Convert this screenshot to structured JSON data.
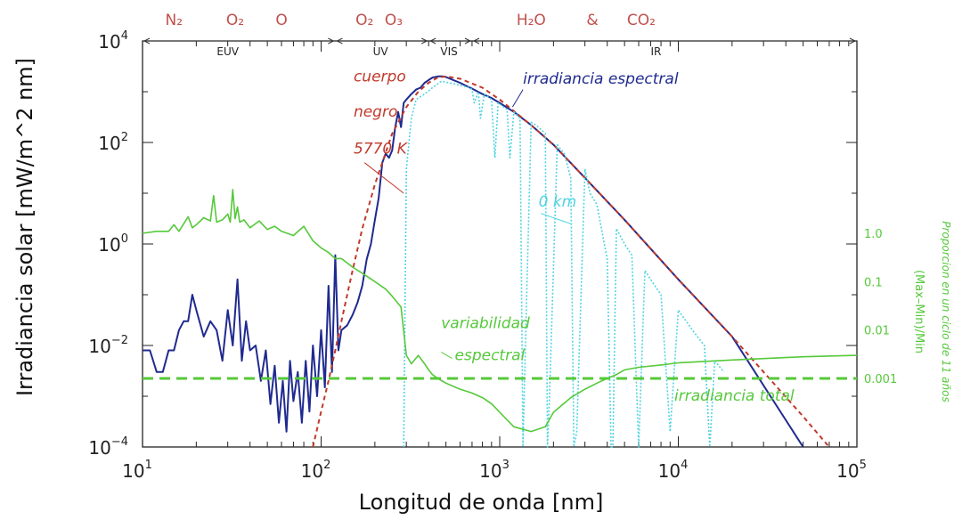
{
  "chart_data": {
    "type": "line",
    "xlabel": "Longitud de onda [nm]",
    "ylabel": "Irradiancia solar [mW/m^2 nm]",
    "y2label": "Proporcion en un ciclo de 11 años",
    "y2label_sub": "(Max–Min)/Min",
    "xscale": "log",
    "yscale": "log",
    "xlim": [
      10,
      100000
    ],
    "ylim": [
      0.0001,
      10000
    ],
    "x_ticks": [
      {
        "base": "10",
        "exp": "1",
        "value": 10
      },
      {
        "base": "10",
        "exp": "2",
        "value": 100
      },
      {
        "base": "10",
        "exp": "3",
        "value": 1000
      },
      {
        "base": "10",
        "exp": "4",
        "value": 10000
      },
      {
        "base": "10",
        "exp": "5",
        "value": 100000
      }
    ],
    "y_ticks": [
      {
        "base": "10",
        "exp": "−4",
        "value": 0.0001
      },
      {
        "base": "10",
        "exp": "−2",
        "value": 0.01
      },
      {
        "base": "10",
        "exp": "0",
        "value": 1
      },
      {
        "base": "10",
        "exp": "2",
        "value": 100
      },
      {
        "base": "10",
        "exp": "4",
        "value": 10000
      }
    ],
    "y2_ticks": [
      {
        "label": "1.0",
        "value": 1.0
      },
      {
        "label": "0.1",
        "value": 0.1
      },
      {
        "label": "0.01",
        "value": 0.01
      },
      {
        "label": "0.001",
        "value": 0.001
      }
    ],
    "top_molecules": [
      {
        "label": "N₂",
        "x": 15
      },
      {
        "label": "O₂",
        "x": 33
      },
      {
        "label": "O",
        "x": 60
      },
      {
        "label": "O₂",
        "x": 175
      },
      {
        "label": "O₃",
        "x": 255
      },
      {
        "label": "H₂O",
        "x": 1500
      },
      {
        "label": "&",
        "x": 3300
      },
      {
        "label": "CO₂",
        "x": 6200
      }
    ],
    "bands": [
      {
        "label": "EUV",
        "from": 10,
        "to": 120,
        "label_x": 30
      },
      {
        "label": "UV",
        "from": 120,
        "to": 400,
        "label_x": 215
      },
      {
        "label": "VIS",
        "from": 400,
        "to": 700,
        "label_x": 520
      },
      {
        "label": "IR",
        "from": 700,
        "to": 100000,
        "label_x": 7500
      }
    ],
    "annotations": [
      {
        "text": "cuerpo",
        "x": 152,
        "y": 1600,
        "color": "#c0392b"
      },
      {
        "text": "negro",
        "x": 152,
        "y": 320,
        "color": "#c0392b"
      },
      {
        "text": "5770 K",
        "x": 152,
        "y": 60,
        "color": "#c0392b"
      },
      {
        "text": "irradiancia espectral",
        "x": 1350,
        "y": 1450,
        "color": "#1f2a8f"
      },
      {
        "text": "0 km",
        "x": 1650,
        "y": 5.5,
        "color": "#4fd3e0"
      },
      {
        "text": "variabilidad",
        "x": 470,
        "y": 0.011,
        "color": "#55c93a"
      },
      {
        "text": "espectral",
        "x": 560,
        "y": 0.0024,
        "color": "#55c93a"
      },
      {
        "text": "irradiancia total",
        "x": 9500,
        "y": 0.00035,
        "color": "#55c93a"
      }
    ],
    "series": [
      {
        "name": "irradiancia espectral",
        "color": "#1f2a8f",
        "x": [
          10,
          11,
          12,
          13,
          14,
          15,
          16,
          17,
          18,
          19,
          20,
          22,
          24,
          26,
          28,
          30,
          32,
          34,
          36,
          38,
          40,
          43,
          46,
          49,
          52,
          55,
          58,
          61,
          64,
          67,
          70,
          74,
          78,
          82,
          86,
          90,
          95,
          100,
          105,
          110,
          115,
          120,
          125,
          130,
          140,
          150,
          160,
          170,
          180,
          190,
          200,
          210,
          220,
          230,
          240,
          250,
          260,
          270,
          280,
          290,
          300,
          320,
          340,
          360,
          380,
          400,
          420,
          450,
          480,
          500,
          550,
          600,
          650,
          700,
          800,
          900,
          1000,
          1200,
          1500,
          2000,
          3000,
          5000,
          10000,
          20000,
          50000
        ],
        "y": [
          0.008,
          0.008,
          0.003,
          0.003,
          0.008,
          0.008,
          0.02,
          0.03,
          0.03,
          0.1,
          0.05,
          0.015,
          0.03,
          0.02,
          0.005,
          0.05,
          0.01,
          0.2,
          0.005,
          0.03,
          0.008,
          0.01,
          0.002,
          0.008,
          0.0007,
          0.004,
          0.0003,
          0.002,
          0.0002,
          0.005,
          0.0008,
          0.003,
          0.0003,
          0.005,
          0.0005,
          0.01,
          0.001,
          0.02,
          0.0015,
          0.15,
          0.003,
          0.6,
          0.008,
          0.02,
          0.025,
          0.04,
          0.07,
          0.15,
          0.5,
          1.0,
          3.0,
          8.0,
          40.0,
          60.0,
          50.0,
          70.0,
          200.0,
          400.0,
          200.0,
          600.0,
          700.0,
          900.0,
          1100.0,
          1200.0,
          1500.0,
          1700.0,
          1900.0,
          2000.0,
          2000.0,
          1950.0,
          1700.0,
          1500.0,
          1300.0,
          1150.0,
          900.0,
          750.0,
          600.0,
          400.0,
          220.0,
          90.0,
          20.0,
          3.0,
          0.2,
          0.015,
          0.0001
        ]
      },
      {
        "name": "cuerpo negro 5770 K",
        "color": "#c0392b",
        "x": [
          90,
          100,
          110,
          120,
          130,
          140,
          150,
          170,
          200,
          250,
          300,
          350,
          400,
          450,
          500,
          600,
          800,
          1000,
          1500,
          2000,
          3000,
          5000,
          10000,
          20000,
          50000,
          70000
        ],
        "y": [
          0.0001,
          0.0005,
          0.002,
          0.008,
          0.03,
          0.1,
          0.3,
          2.0,
          15.0,
          150.0,
          500.0,
          1000.0,
          1500.0,
          1900.0,
          2000.0,
          1800.0,
          1200.0,
          700.0,
          220.0,
          90.0,
          20.0,
          3.0,
          0.2,
          0.015,
          0.0004,
          0.0001
        ]
      },
      {
        "name": "0 km",
        "color": "#4fd3e0",
        "x": [
          290,
          300,
          320,
          340,
          380,
          420,
          470,
          520,
          570,
          620,
          680,
          700,
          720,
          760,
          780,
          820,
          900,
          940,
          980,
          1050,
          1100,
          1140,
          1200,
          1300,
          1350,
          1400,
          1500,
          1600,
          1800,
          1850,
          1900,
          2100,
          2300,
          2500,
          2600,
          2700,
          3000,
          3200,
          3500,
          4000,
          4200,
          4300,
          4500,
          5000,
          5500,
          6000,
          6500,
          7000,
          8000,
          9000,
          10000,
          12000,
          14000,
          15000,
          16000,
          18000
        ],
        "y": [
          0.0001,
          30.0,
          300.0,
          700.0,
          900.0,
          1200.0,
          1600.0,
          1500.0,
          1400.0,
          1300.0,
          1200.0,
          1100.0,
          600.0,
          1000.0,
          300.0,
          900.0,
          700.0,
          50.0,
          600.0,
          500.0,
          450.0,
          50.0,
          400.0,
          300.0,
          0.0001,
          0.02,
          250.0,
          220.0,
          150.0,
          0.0001,
          0.001,
          90.0,
          60.0,
          20.0,
          0.0001,
          0.0002,
          30.0,
          10.0,
          6.0,
          0.5,
          0.0001,
          0.0001,
          2.0,
          1.0,
          0.6,
          0.0001,
          0.3,
          0.2,
          0.1,
          0.0002,
          0.05,
          0.02,
          0.01,
          0.0001,
          0.005,
          0.003
        ]
      },
      {
        "name": "variabilidad espectral",
        "color": "#55c93a",
        "axis": "right",
        "x": [
          10,
          12,
          14,
          15,
          16,
          18,
          19,
          20,
          22,
          24,
          25,
          26,
          28,
          30,
          31,
          32,
          33,
          34,
          35,
          37,
          40,
          45,
          50,
          55,
          60,
          70,
          80,
          90,
          100,
          110,
          120,
          130,
          150,
          170,
          200,
          230,
          250,
          280,
          300,
          320,
          350,
          380,
          400,
          420,
          450,
          500,
          600,
          700,
          800,
          900,
          1000,
          1200,
          1500,
          1800,
          2000,
          2500,
          3000,
          3500,
          4000,
          4500,
          5000,
          6000,
          8000,
          10000,
          20000,
          50000,
          100000
        ],
        "y": [
          1.0,
          1.1,
          1.1,
          1.5,
          1.1,
          2.2,
          1.3,
          1.5,
          2.1,
          1.8,
          6.0,
          1.7,
          1.9,
          2.5,
          1.7,
          8.0,
          2.0,
          3.5,
          1.7,
          1.9,
          1.3,
          1.8,
          1.2,
          1.4,
          1.1,
          0.9,
          1.4,
          0.7,
          0.5,
          0.4,
          0.3,
          0.3,
          0.2,
          0.15,
          0.1,
          0.07,
          0.05,
          0.03,
          0.003,
          0.002,
          0.003,
          0.002,
          0.0015,
          0.0012,
          0.001,
          0.0008,
          0.0006,
          0.0005,
          0.0004,
          0.0003,
          0.0002,
          0.0001,
          8e-05,
          0.0001,
          0.0002,
          0.0004,
          0.0006,
          0.0008,
          0.001,
          0.0012,
          0.0015,
          0.0017,
          0.0019,
          0.0021,
          0.0024,
          0.0028,
          0.003
        ]
      },
      {
        "name": "irradiancia total",
        "color": "#55c93a",
        "axis": "right",
        "style": "dashed",
        "x": [
          10,
          100000
        ],
        "y": [
          0.001,
          0.001
        ]
      }
    ]
  }
}
